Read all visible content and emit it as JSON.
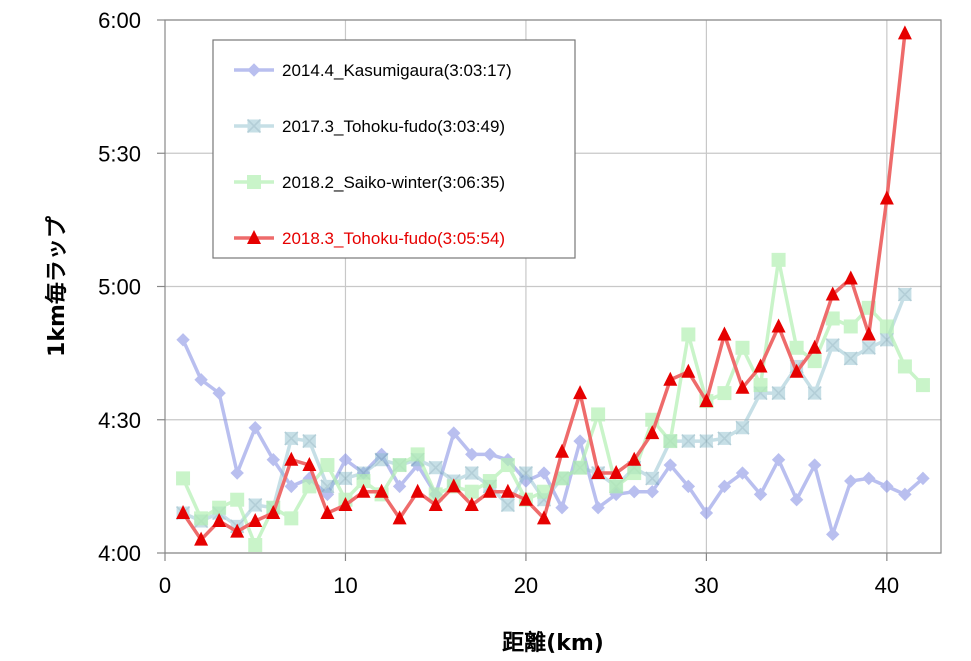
{
  "chart_data": {
    "type": "line",
    "title": "",
    "xlabel": "距離(km)",
    "ylabel": "1km毎ラップ",
    "xlim": [
      0,
      43
    ],
    "ylim": [
      4.0,
      6.0
    ],
    "x_ticks": [
      {
        "value": 0,
        "label": "0"
      },
      {
        "value": 10,
        "label": "10"
      },
      {
        "value": 20,
        "label": "20"
      },
      {
        "value": 30,
        "label": "30"
      },
      {
        "value": 40,
        "label": "40"
      }
    ],
    "y_ticks": [
      {
        "value": 4.0,
        "label": "4:00"
      },
      {
        "value": 4.5,
        "label": "4:30"
      },
      {
        "value": 5.0,
        "label": "5:00"
      },
      {
        "value": 5.5,
        "label": "5:30"
      },
      {
        "value": 6.0,
        "label": "6:00"
      }
    ],
    "grid": true,
    "legend_position": "top-left",
    "series": [
      {
        "name": "2014.4_Kasumigaura(3:03:17)",
        "color": "#8c96e6",
        "text_color": "#000000",
        "marker": "diamond",
        "opacity": 0.6,
        "x": [
          1,
          2,
          3,
          4,
          5,
          6,
          7,
          8,
          9,
          10,
          11,
          12,
          13,
          14,
          15,
          16,
          17,
          18,
          19,
          20,
          21,
          22,
          23,
          24,
          25,
          26,
          27,
          28,
          29,
          30,
          31,
          32,
          33,
          34,
          35,
          36,
          37,
          38,
          39,
          40,
          41,
          42
        ],
        "values": [
          4.8,
          4.65,
          4.6,
          4.3,
          4.47,
          4.35,
          4.25,
          4.28,
          4.22,
          4.35,
          4.3,
          4.37,
          4.25,
          4.33,
          4.22,
          4.45,
          4.37,
          4.37,
          4.35,
          4.27,
          4.3,
          4.17,
          4.42,
          4.17,
          4.22,
          4.23,
          4.23,
          4.33,
          4.25,
          4.15,
          4.25,
          4.3,
          4.22,
          4.35,
          4.2,
          4.33,
          4.07,
          4.27,
          4.28,
          4.25,
          4.22,
          4.28
        ]
      },
      {
        "name": "2017.3_Tohoku-fudo(3:03:49)",
        "color": "#8fc0cf",
        "text_color": "#000000",
        "marker": "x-square",
        "opacity": 0.5,
        "x": [
          1,
          2,
          3,
          4,
          5,
          6,
          7,
          8,
          9,
          10,
          11,
          12,
          13,
          14,
          15,
          16,
          17,
          18,
          19,
          20,
          21,
          22,
          23,
          24,
          25,
          26,
          27,
          28,
          29,
          30,
          31,
          32,
          33,
          34,
          35,
          36,
          37,
          38,
          39,
          40,
          41
        ],
        "values": [
          4.15,
          4.12,
          4.15,
          4.1,
          4.18,
          4.17,
          4.43,
          4.42,
          4.25,
          4.28,
          4.3,
          4.35,
          4.33,
          4.35,
          4.32,
          4.27,
          4.3,
          4.25,
          4.18,
          4.3,
          4.2,
          4.28,
          4.32,
          4.3,
          4.25,
          4.32,
          4.28,
          4.42,
          4.42,
          4.42,
          4.43,
          4.47,
          4.6,
          4.6,
          4.7,
          4.6,
          4.78,
          4.73,
          4.77,
          4.8,
          4.97
        ]
      },
      {
        "name": "2018.2_Saiko-winter(3:06:35)",
        "color": "#b3f0b3",
        "text_color": "#000000",
        "marker": "square",
        "opacity": 0.7,
        "x": [
          1,
          2,
          3,
          4,
          5,
          6,
          7,
          8,
          9,
          10,
          11,
          12,
          13,
          14,
          15,
          16,
          17,
          18,
          19,
          20,
          21,
          22,
          23,
          24,
          25,
          26,
          27,
          28,
          29,
          30,
          31,
          32,
          33,
          34,
          35,
          36,
          37,
          38,
          39,
          40,
          41,
          42
        ],
        "values": [
          4.28,
          4.13,
          4.17,
          4.2,
          4.03,
          4.17,
          4.13,
          4.25,
          4.33,
          4.2,
          4.27,
          4.22,
          4.33,
          4.37,
          4.22,
          4.25,
          4.23,
          4.27,
          4.33,
          4.2,
          4.23,
          4.28,
          4.32,
          4.52,
          4.25,
          4.3,
          4.5,
          4.42,
          4.82,
          4.57,
          4.6,
          4.77,
          4.63,
          5.1,
          4.77,
          4.72,
          4.88,
          4.85,
          4.92,
          4.85,
          4.7,
          4.63
        ]
      },
      {
        "name": "2018.3_Tohoku-fudo(3:05:54)",
        "color": "#ee6b6b",
        "text_color": "#e60000",
        "marker_color": "#e60000",
        "marker": "triangle",
        "opacity": 1.0,
        "x": [
          1,
          2,
          3,
          4,
          5,
          6,
          7,
          8,
          9,
          10,
          11,
          12,
          13,
          14,
          15,
          16,
          17,
          18,
          19,
          20,
          21,
          22,
          23,
          24,
          25,
          26,
          27,
          28,
          29,
          30,
          31,
          32,
          33,
          34,
          35,
          36,
          37,
          38,
          39,
          40,
          41
        ],
        "values": [
          4.15,
          4.05,
          4.12,
          4.08,
          4.12,
          4.15,
          4.35,
          4.33,
          4.15,
          4.18,
          4.23,
          4.23,
          4.13,
          4.23,
          4.18,
          4.25,
          4.18,
          4.23,
          4.23,
          4.2,
          4.13,
          4.38,
          4.6,
          4.3,
          4.3,
          4.35,
          4.45,
          4.65,
          4.68,
          4.57,
          4.82,
          4.62,
          4.7,
          4.85,
          4.68,
          4.77,
          4.97,
          5.03,
          4.82,
          5.33,
          5.95
        ]
      }
    ]
  }
}
